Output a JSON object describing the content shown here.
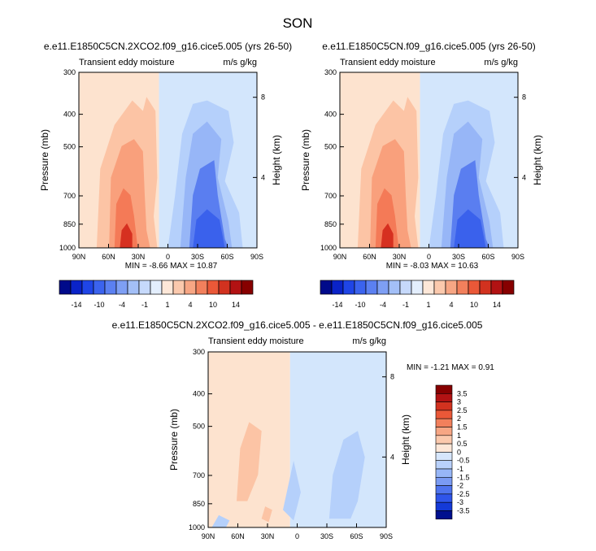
{
  "season": "SON",
  "colors": {
    "panel_left_fill": "#fde3cf",
    "panel_right_fill": "#d3e6fc",
    "warm_palette": [
      "#fde3cf",
      "#fcc4a5",
      "#f9a07c",
      "#f47a57",
      "#ee5537",
      "#d63020",
      "#b41212",
      "#870000"
    ],
    "cool_palette": [
      "#d3e6fc",
      "#b5d0fb",
      "#97b6f7",
      "#7a9bf3",
      "#5a7ef0",
      "#3a61ec",
      "#1c3fe2",
      "#0000a0"
    ]
  },
  "chart_data": [
    {
      "type": "contour",
      "title": "e.e11.E1850C5CN.2XCO2.f09_g16.cice5.005 (yrs 26-50)",
      "subtitle_left": "Transient eddy moisture",
      "subtitle_right": "m/s g/kg",
      "xlabel": "",
      "ylabel": "Pressure (mb)",
      "ylabel_right": "Height (km)",
      "x_ticks": [
        "90N",
        "60N",
        "30N",
        "0",
        "30S",
        "60S",
        "90S"
      ],
      "y_ticks": [
        "300",
        "400",
        "500",
        "700",
        "850",
        "1000"
      ],
      "y_ticks_right": [
        "8",
        "4"
      ],
      "x_values": [
        90,
        60,
        30,
        0,
        -30,
        -60,
        -90
      ],
      "y_values": [
        300,
        400,
        500,
        700,
        850,
        1000
      ],
      "xlim": [
        90,
        -90
      ],
      "ylim": [
        1000,
        300
      ],
      "min_max": "MIN = -8.66  MAX = 10.87",
      "min": -8.66,
      "max": 10.87
    },
    {
      "type": "contour",
      "title": "e.e11.E1850C5CN.f09_g16.cice5.005 (yrs 26-50)",
      "subtitle_left": "Transient eddy moisture",
      "subtitle_right": "m/s g/kg",
      "ylabel": "Pressure (mb)",
      "ylabel_right": "Height (km)",
      "x_ticks": [
        "90N",
        "60N",
        "30N",
        "0",
        "30S",
        "60S",
        "90S"
      ],
      "y_ticks": [
        "300",
        "400",
        "500",
        "700",
        "850",
        "1000"
      ],
      "y_ticks_right": [
        "8",
        "4"
      ],
      "xlim": [
        90,
        -90
      ],
      "ylim": [
        1000,
        300
      ],
      "min_max": "MIN = -8.03  MAX = 10.63",
      "min": -8.03,
      "max": 10.63
    },
    {
      "type": "contour",
      "title": "e.e11.E1850C5CN.2XCO2.f09_g16.cice5.005 - e.e11.E1850C5CN.f09_g16.cice5.005",
      "subtitle_left": "Transient eddy moisture",
      "subtitle_right": "m/s g/kg",
      "ylabel": "Pressure (mb)",
      "ylabel_right": "Height (km)",
      "x_ticks": [
        "90N",
        "60N",
        "30N",
        "0",
        "30S",
        "60S",
        "90S"
      ],
      "y_ticks": [
        "300",
        "400",
        "500",
        "700",
        "850",
        "1000"
      ],
      "y_ticks_right": [
        "8",
        "4"
      ],
      "xlim": [
        90,
        -90
      ],
      "ylim": [
        1000,
        300
      ],
      "min_max": "MIN =  -1.21  MAX =   0.91",
      "min": -1.21,
      "max": 0.91
    }
  ],
  "colorbar_top": {
    "labels": [
      "-14",
      "-10",
      "-4",
      "-1",
      "1",
      "4",
      "10",
      "14"
    ],
    "swatches": [
      "#000a8a",
      "#0a23c8",
      "#1f45e6",
      "#3b63ee",
      "#5b80f1",
      "#7e9ff4",
      "#a3bff7",
      "#c6d9fb",
      "#e3eefd",
      "#fde7d8",
      "#fbc9ad",
      "#f7a684",
      "#f2805c",
      "#ea5838",
      "#d2321f",
      "#b21213",
      "#870000"
    ]
  },
  "colorbar_bottom": {
    "labels": [
      "3.5",
      "3",
      "2.5",
      "2",
      "1.5",
      "1",
      "0.5",
      "0",
      "-0.5",
      "-1",
      "-1.5",
      "-2",
      "-2.5",
      "-3",
      "-3.5"
    ],
    "swatches": [
      "#870000",
      "#b21213",
      "#d2321f",
      "#ea5838",
      "#f2805c",
      "#f7a684",
      "#fbc9ad",
      "#fde7d8",
      "#d6e6fc",
      "#b9d1fb",
      "#97b6f7",
      "#7a9bf3",
      "#4f74ee",
      "#2f55ea",
      "#143ad8",
      "#00108f"
    ]
  }
}
